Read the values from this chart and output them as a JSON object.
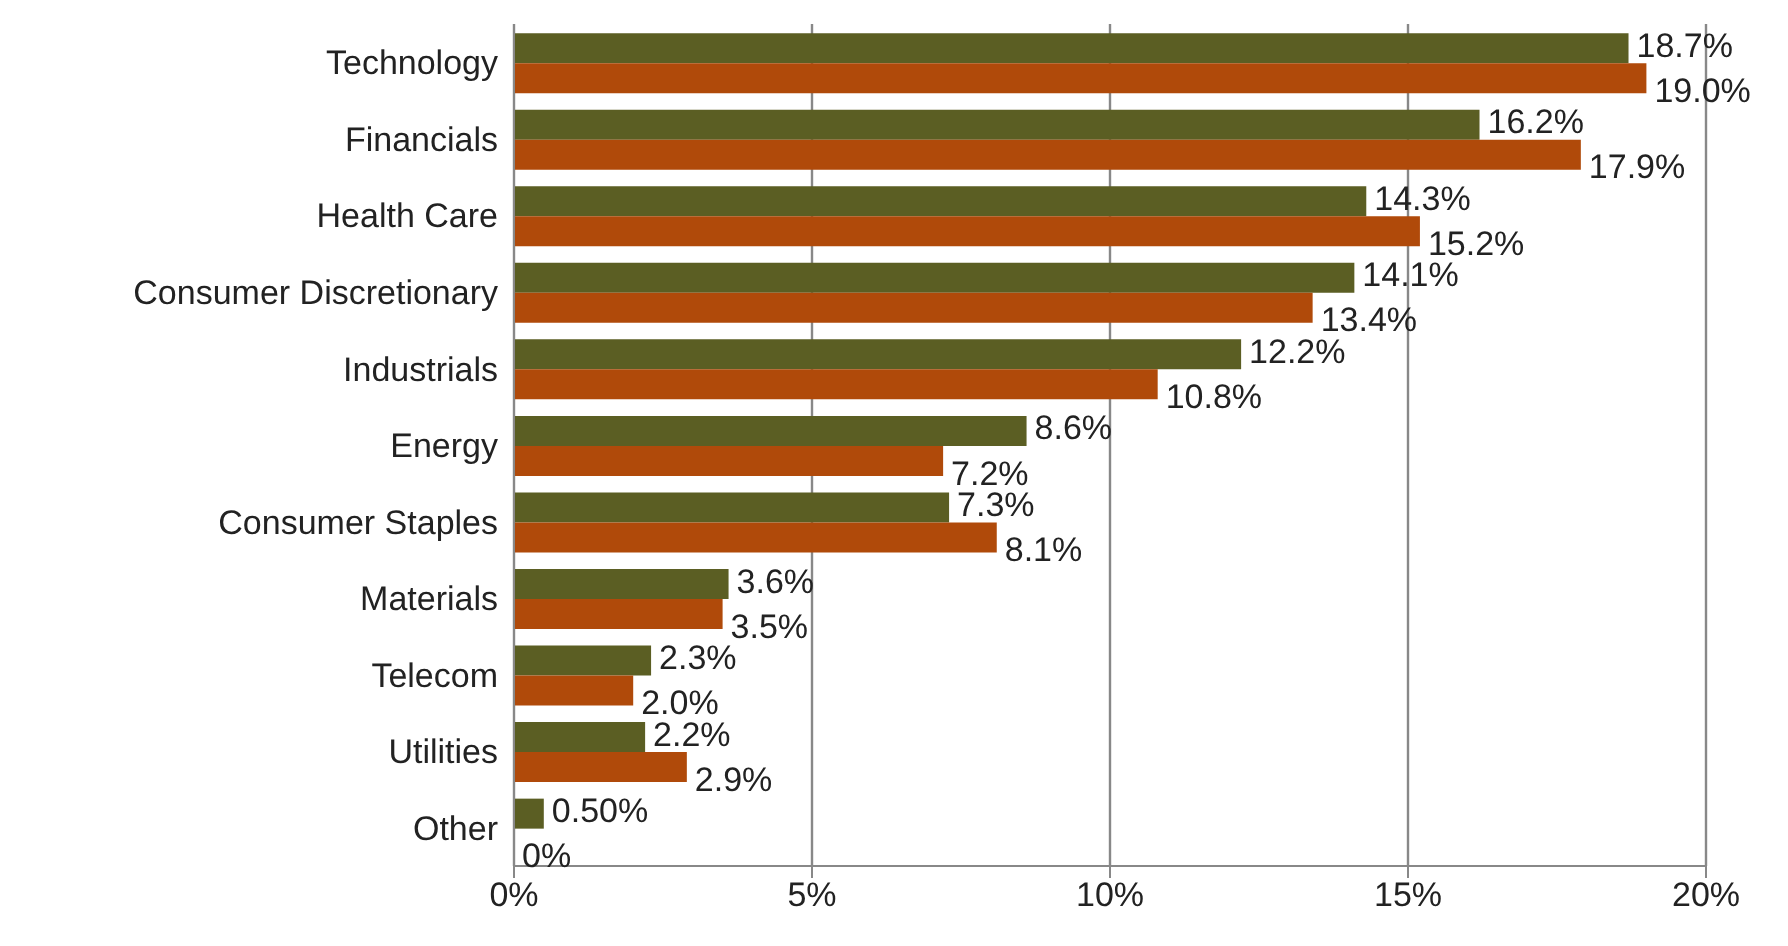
{
  "chart_data": {
    "type": "bar",
    "orientation": "horizontal",
    "categories": [
      "Technology",
      "Financials",
      "Health Care",
      "Consumer Discretionary",
      "Industrials",
      "Energy",
      "Consumer Staples",
      "Materials",
      "Telecom",
      "Utilities",
      "Other"
    ],
    "series": [
      {
        "color": "#5b5e23",
        "values": [
          18.7,
          16.2,
          14.3,
          14.1,
          12.2,
          8.6,
          7.3,
          3.6,
          2.3,
          2.2,
          0.5
        ],
        "value_labels": [
          "18.7%",
          "16.2%",
          "14.3%",
          "14.1%",
          "12.2%",
          "8.6%",
          "7.3%",
          "3.6%",
          "2.3%",
          "2.2%",
          "0.50%"
        ]
      },
      {
        "color": "#b04a0a",
        "values": [
          19.0,
          17.9,
          15.2,
          13.4,
          10.8,
          7.2,
          8.1,
          3.5,
          2.0,
          2.9,
          0
        ],
        "value_labels": [
          "19.0%",
          "17.9%",
          "15.2%",
          "13.4%",
          "10.8%",
          "7.2%",
          "8.1%",
          "3.5%",
          "2.0%",
          "2.9%",
          "0%"
        ]
      }
    ],
    "xlim": [
      0,
      20
    ],
    "xticks": [
      {
        "value": 0,
        "label": "0%"
      },
      {
        "value": 5,
        "label": "5%"
      },
      {
        "value": 10,
        "label": "10%"
      },
      {
        "value": 15,
        "label": "15%"
      },
      {
        "value": 20,
        "label": "20%"
      }
    ],
    "grid": "x",
    "legend": false
  }
}
